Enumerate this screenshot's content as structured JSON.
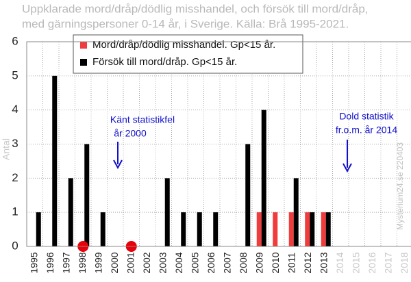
{
  "chart_data": {
    "type": "bar",
    "title": [
      "Uppklarade mord/dråp/dödlig misshandel, och försök till mord/dråp,",
      "med gärningspersoner 0-14 år, i Sverige. Källa: Brå 1995-2021."
    ],
    "y_label": "Antal",
    "watermark": "Mysterium24.se  220403",
    "categories": [
      "1995",
      "1996",
      "1997",
      "1998",
      "1999",
      "2000",
      "2001",
      "2002",
      "2003",
      "2004",
      "2005",
      "2006",
      "2007",
      "2008",
      "2009",
      "2010",
      "2011",
      "2012",
      "2013",
      "2014",
      "2015",
      "2016",
      "2017",
      "2018"
    ],
    "series": [
      {
        "name": "Mord/dråp/dödlig misshandel. Gp<15 år.",
        "color": "#f03c3c",
        "values": [
          0,
          0,
          0,
          0,
          0,
          0,
          0,
          0,
          0,
          0,
          0,
          0,
          0,
          0,
          1,
          1,
          1,
          1,
          1,
          null,
          null,
          null,
          null,
          null
        ]
      },
      {
        "name": "Försök till mord/dråp. Gp<15 år.",
        "color": "#000000",
        "values": [
          1,
          5,
          2,
          3,
          1,
          0,
          0,
          0,
          2,
          1,
          1,
          1,
          0,
          3,
          4,
          0,
          2,
          1,
          1,
          null,
          null,
          null,
          null,
          null
        ]
      }
    ],
    "markers": {
      "type": "scatter",
      "color": "#e8000b",
      "values": [
        null,
        null,
        null,
        0,
        null,
        null,
        0,
        null,
        null,
        null,
        null,
        null,
        null,
        null,
        null,
        null,
        null,
        null,
        null,
        null,
        null,
        null,
        null,
        null
      ]
    },
    "ylim": [
      0,
      6
    ],
    "yticks": [
      0,
      1,
      2,
      3,
      4,
      5,
      6
    ],
    "grid": true,
    "legend": "top-left",
    "annotations": [
      {
        "lines": [
          "Känt statistikfel",
          "år 2000"
        ],
        "color": "#1010cc"
      },
      {
        "lines": [
          "Dold statistik",
          "fr.o.m. år 2014"
        ],
        "color": "#1010cc"
      }
    ]
  }
}
